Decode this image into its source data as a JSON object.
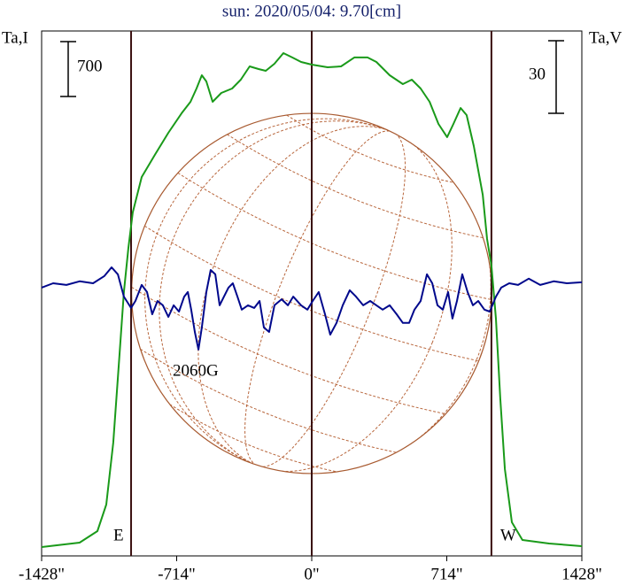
{
  "chart_data": {
    "type": "line",
    "title": "sun: 2020/05/04: 9.70[cm]",
    "y_label": "Ta,I",
    "y2_label": "Ta,V",
    "annotation": "2060G",
    "xlim": [
      -1428,
      1428
    ],
    "xticks": [
      {
        "value": -1428,
        "label": "-1428\""
      },
      {
        "value": -714,
        "label": "-714\""
      },
      {
        "value": 0,
        "label": "0\""
      },
      {
        "value": 714,
        "label": "714\""
      },
      {
        "value": 1428,
        "label": "1428\""
      }
    ],
    "ylim": [
      -113,
      6582
    ],
    "y2lim": [
      -112,
      105
    ],
    "markers": [
      {
        "label": "E",
        "x": -955
      },
      {
        "label": "W",
        "x": 950
      }
    ],
    "scale_bars": [
      {
        "value": 700,
        "axis": "y"
      },
      {
        "value": 30,
        "axis": "y2"
      }
    ],
    "series": [
      {
        "name": "Ta,I",
        "color": "#1a9a1a",
        "x": [
          -1428,
          -1227,
          -1133,
          -1086,
          -1049,
          -1016,
          -993,
          -969,
          -946,
          -899,
          -829,
          -758,
          -688,
          -641,
          -609,
          -581,
          -557,
          -524,
          -478,
          -421,
          -375,
          -328,
          -281,
          -243,
          -197,
          -150,
          -103,
          -56,
          0,
          84,
          155,
          225,
          295,
          342,
          412,
          482,
          529,
          576,
          623,
          670,
          716,
          749,
          787,
          819,
          857,
          904,
          927,
          950,
          974,
          997,
          1021,
          1058,
          1114,
          1255,
          1428
        ],
        "values": [
          0,
          56,
          203,
          542,
          1332,
          2461,
          3252,
          3817,
          4268,
          4719,
          5002,
          5284,
          5533,
          5679,
          5848,
          6018,
          5939,
          5679,
          5792,
          5848,
          5961,
          6130,
          6097,
          6074,
          6164,
          6300,
          6244,
          6187,
          6153,
          6119,
          6130,
          6244,
          6244,
          6187,
          6018,
          5905,
          5961,
          5848,
          5679,
          5397,
          5228,
          5397,
          5600,
          5509,
          5114,
          4494,
          3929,
          3591,
          2913,
          1897,
          993,
          316,
          90,
          45,
          11
        ]
      },
      {
        "name": "Ta,V",
        "color": "#00088c",
        "axis": "y2",
        "x": [
          -1428,
          -1367,
          -1297,
          -1227,
          -1156,
          -1096,
          -1058,
          -1025,
          -993,
          -955,
          -932,
          -899,
          -871,
          -843,
          -815,
          -787,
          -758,
          -730,
          -702,
          -674,
          -655,
          -637,
          -618,
          -599,
          -581,
          -557,
          -534,
          -510,
          -487,
          -464,
          -440,
          -417,
          -393,
          -370,
          -337,
          -304,
          -276,
          -253,
          -225,
          -197,
          -159,
          -126,
          -98,
          -56,
          -23,
          5,
          37,
          70,
          98,
          131,
          164,
          201,
          234,
          272,
          309,
          342,
          375,
          412,
          449,
          482,
          515,
          543,
          576,
          609,
          637,
          665,
          693,
          721,
          744,
          768,
          796,
          824,
          852,
          880,
          913,
          941,
          974,
          1002,
          1044,
          1091,
          1147,
          1208,
          1279,
          1349,
          1428
        ],
        "values": [
          -1.1,
          0.7,
          0,
          1.5,
          0.7,
          3.7,
          7.3,
          4.4,
          -4.8,
          -9.5,
          -6.6,
          0,
          -2.9,
          -12.1,
          -6.6,
          -8.4,
          -13.2,
          -8.4,
          -11.0,
          -4.8,
          -2.9,
          -10.2,
          -19.4,
          -26.7,
          -17.6,
          -2.9,
          6.2,
          4.4,
          -8.4,
          -4.8,
          -1.1,
          0.7,
          -4.8,
          -10.2,
          -8.4,
          -9.5,
          -6.6,
          -17.6,
          -19.4,
          -8.4,
          -5.9,
          -8.4,
          -4.8,
          -8.4,
          -10.2,
          -6.6,
          -2.9,
          -12.1,
          -20.5,
          -15.7,
          -8.4,
          -2.2,
          -4.8,
          -8.4,
          -6.6,
          -8.4,
          -10.2,
          -8.4,
          -12.1,
          -15.7,
          -15.7,
          -10.2,
          -6.6,
          4.4,
          0.7,
          -8.4,
          -10.2,
          -2.9,
          -13.9,
          -6.6,
          4.4,
          -2.9,
          -8.4,
          -6.6,
          -10.2,
          -11.0,
          -4.8,
          -1.1,
          0.7,
          0,
          2.6,
          0,
          1.5,
          0.7,
          1.1
        ]
      }
    ]
  }
}
